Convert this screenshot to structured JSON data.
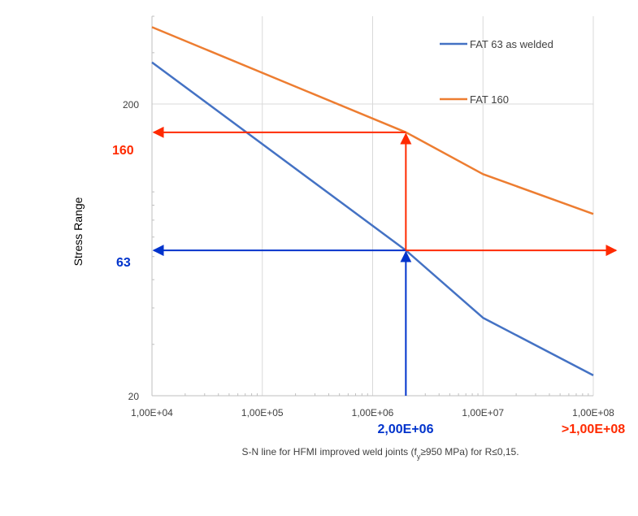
{
  "chart_data": {
    "type": "line",
    "title": "",
    "xlabel_prefix": "S-N line for HFMI improved weld joints (f",
    "xlabel_sub": "y",
    "xlabel_suffix": "≥950 MPa) for  R≤0,15.",
    "ylabel": "Stress Range",
    "x_scale": "log",
    "y_scale": "log",
    "xlim": [
      10000,
      100000000
    ],
    "ylim": [
      20,
      400
    ],
    "grid": true,
    "legend_position": "top-right",
    "x_ticks": [
      {
        "value": 10000,
        "label": "1,00E+04"
      },
      {
        "value": 100000,
        "label": "1,00E+05"
      },
      {
        "value": 1000000,
        "label": "1,00E+06"
      },
      {
        "value": 10000000,
        "label": "1,00E+07"
      },
      {
        "value": 100000000,
        "label": "1,00E+08"
      }
    ],
    "y_ticks": [
      {
        "value": 20,
        "label": "20"
      },
      {
        "value": 200,
        "label": "200"
      }
    ],
    "series": [
      {
        "name": "FAT 63 as welded",
        "color": "#4472C4",
        "points": [
          [
            10000,
            278
          ],
          [
            2000000,
            63
          ],
          [
            10000000,
            37
          ],
          [
            100000000,
            23.5
          ]
        ]
      },
      {
        "name": "FAT 160",
        "color": "#ED7D31",
        "points": [
          [
            10000,
            367
          ],
          [
            2000000,
            160
          ],
          [
            10000000,
            115
          ],
          [
            100000000,
            84
          ]
        ]
      }
    ],
    "annotations": [
      {
        "label": "160",
        "color": "#FF2A00",
        "value": 160
      },
      {
        "label": "63",
        "color": "#0033CC",
        "value": 63
      },
      {
        "label": "2,00E+06",
        "color": "#0033CC",
        "value": 2000000
      },
      {
        "label": ">1,00E+08",
        "color": "#FF2A00",
        "value": 100000000
      }
    ],
    "arrow_colors": {
      "red": "#FF2A00",
      "blue": "#0033CC"
    }
  }
}
